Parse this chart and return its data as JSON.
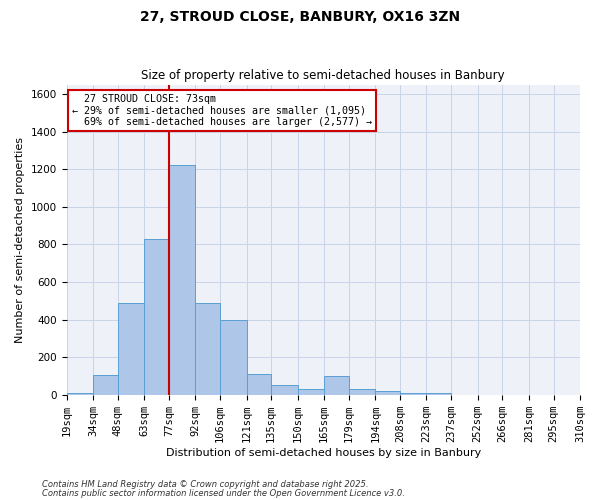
{
  "title1": "27, STROUD CLOSE, BANBURY, OX16 3ZN",
  "title2": "Size of property relative to semi-detached houses in Banbury",
  "xlabel": "Distribution of semi-detached houses by size in Banbury",
  "ylabel": "Number of semi-detached properties",
  "property_label": "27 STROUD CLOSE: 73sqm",
  "pct_smaller": 29,
  "count_smaller": 1095,
  "pct_larger": 69,
  "count_larger": 2577,
  "bin_labels": [
    "19sqm",
    "34sqm",
    "48sqm",
    "63sqm",
    "77sqm",
    "92sqm",
    "106sqm",
    "121sqm",
    "135sqm",
    "150sqm",
    "165sqm",
    "179sqm",
    "194sqm",
    "208sqm",
    "223sqm",
    "237sqm",
    "252sqm",
    "266sqm",
    "281sqm",
    "295sqm",
    "310sqm"
  ],
  "bin_edges": [
    19,
    34,
    48,
    63,
    77,
    92,
    106,
    121,
    135,
    150,
    165,
    179,
    194,
    208,
    223,
    237,
    252,
    266,
    281,
    295,
    310
  ],
  "counts": [
    10,
    105,
    490,
    830,
    1220,
    490,
    400,
    110,
    50,
    30,
    100,
    30,
    20,
    10,
    10,
    0,
    0,
    0,
    0,
    0
  ],
  "bar_color": "#aec6e8",
  "bar_edge_color": "#5a9fd4",
  "vline_x": 77,
  "vline_color": "#cc0000",
  "grid_color": "#c8d4e8",
  "bg_color": "#eef2f8",
  "annotation_box_edge": "#cc0000",
  "footnote1": "Contains HM Land Registry data © Crown copyright and database right 2025.",
  "footnote2": "Contains public sector information licensed under the Open Government Licence v3.0.",
  "ylim": [
    0,
    1650
  ],
  "yticks": [
    0,
    200,
    400,
    600,
    800,
    1000,
    1200,
    1400,
    1600
  ],
  "title1_fontsize": 10,
  "title2_fontsize": 8.5,
  "axis_fontsize": 8,
  "tick_fontsize": 7.5,
  "footnote_fontsize": 6
}
